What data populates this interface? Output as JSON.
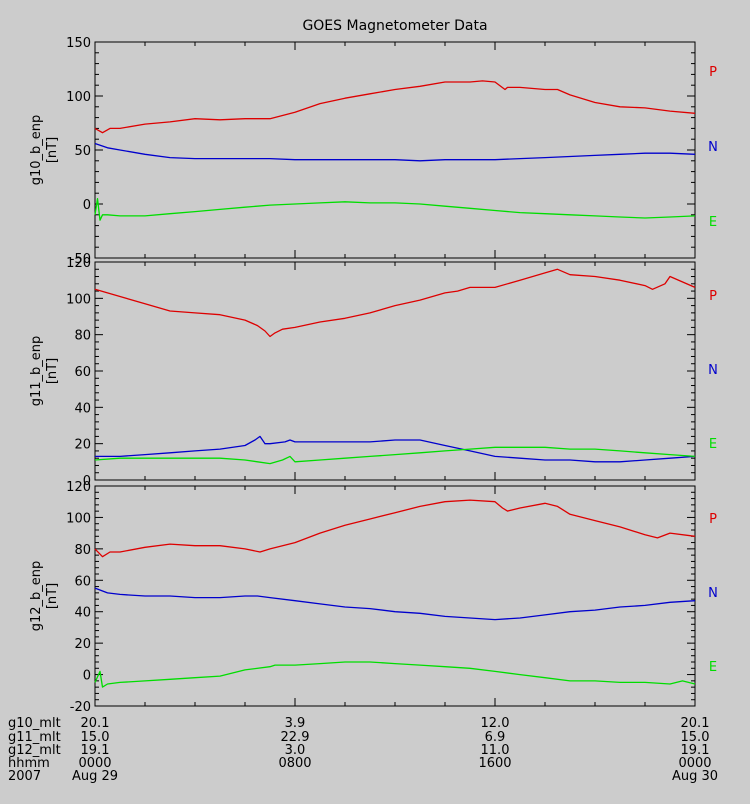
{
  "chart_data": {
    "type": "line",
    "title": "GOES Magnetometer Data",
    "time_axis": {
      "x_range_hours": [
        0,
        24
      ],
      "positions_hours": [
        0,
        8,
        16,
        24
      ],
      "rows": [
        {
          "label": "g10_mlt",
          "values": [
            "20.1",
            "3.9",
            "12.0",
            "20.1"
          ]
        },
        {
          "label": "g11_mlt",
          "values": [
            "15.0",
            "22.9",
            "6.9",
            "15.0"
          ]
        },
        {
          "label": "g12_mlt",
          "values": [
            "19.1",
            "3.0",
            "11.0",
            "19.1"
          ]
        },
        {
          "label": "hhmm",
          "values": [
            "0000",
            "0800",
            "1600",
            "0000"
          ]
        },
        {
          "label": "2007",
          "values": [
            "Aug 29",
            "",
            "",
            "Aug 30"
          ]
        }
      ]
    },
    "panels": [
      {
        "ylabel": "g10_b_enp",
        "unit": "[nT]",
        "ylim": [
          -50,
          150
        ],
        "yticks": [
          "-50",
          "0",
          "50",
          "100",
          "150"
        ],
        "series": [
          {
            "name": "P",
            "color": "#dd0000",
            "x": [
              0,
              0.3,
              0.6,
              1,
              2,
              3,
              4,
              5,
              6,
              7,
              8,
              9,
              10,
              11,
              12,
              13,
              14,
              15,
              15.5,
              16,
              16.4,
              16.5,
              17,
              18,
              18.5,
              19,
              20,
              21,
              22,
              23,
              24
            ],
            "y": [
              70,
              66,
              70,
              70,
              74,
              76,
              79,
              78,
              79,
              79,
              85,
              93,
              98,
              102,
              106,
              109,
              113,
              113,
              114,
              113,
              106,
              108,
              108,
              106,
              106,
              101,
              94,
              90,
              89,
              86,
              84
            ]
          },
          {
            "name": "N",
            "color": "#0000cc",
            "x": [
              0,
              0.5,
              1,
              2,
              3,
              4,
              5,
              6,
              7,
              8,
              9,
              10,
              11,
              12,
              13,
              14,
              15,
              16,
              17,
              18,
              19,
              20,
              21,
              22,
              23,
              24
            ],
            "y": [
              56,
              52,
              50,
              46,
              43,
              42,
              42,
              42,
              42,
              41,
              41,
              41,
              41,
              41,
              40,
              41,
              41,
              41,
              42,
              43,
              44,
              45,
              46,
              47,
              47,
              46
            ]
          },
          {
            "name": "E",
            "color": "#00dd00",
            "x": [
              0,
              0.1,
              0.2,
              0.3,
              0.5,
              1,
              2,
              3,
              4,
              5,
              6,
              7,
              8,
              9,
              10,
              11,
              12,
              13,
              14,
              15,
              16,
              17,
              18,
              19,
              20,
              21,
              22,
              23,
              24
            ],
            "y": [
              -10,
              5,
              -15,
              -10,
              -10,
              -11,
              -11,
              -9,
              -7,
              -5,
              -3,
              -1,
              0,
              1,
              2,
              1,
              1,
              0,
              -2,
              -4,
              -6,
              -8,
              -9,
              -10,
              -11,
              -12,
              -13,
              -12,
              -11
            ]
          }
        ]
      },
      {
        "ylabel": "g11_b_enp",
        "unit": "[nT]",
        "ylim": [
          0,
          120
        ],
        "yticks": [
          "0",
          "20",
          "40",
          "60",
          "80",
          "100",
          "120"
        ],
        "series": [
          {
            "name": "P",
            "color": "#dd0000",
            "x": [
              0,
              0.5,
              1,
              2,
              3,
              4,
              5,
              6,
              6.5,
              6.8,
              7,
              7.2,
              7.5,
              8,
              9,
              10,
              11,
              12,
              13,
              14,
              14.5,
              15,
              16,
              17,
              18,
              18.5,
              19,
              20,
              21,
              22,
              22.3,
              22.8,
              23,
              24
            ],
            "y": [
              105,
              103,
              101,
              97,
              93,
              92,
              91,
              88,
              85,
              82,
              79,
              81,
              83,
              84,
              87,
              89,
              92,
              96,
              99,
              103,
              104,
              106,
              106,
              110,
              114,
              116,
              113,
              112,
              110,
              107,
              105,
              108,
              112,
              106
            ]
          },
          {
            "name": "N",
            "color": "#0000cc",
            "x": [
              0,
              1,
              2,
              3,
              4,
              5,
              6,
              6.4,
              6.6,
              6.8,
              7,
              7.6,
              7.8,
              8,
              9,
              10,
              11,
              12,
              13,
              14,
              15,
              16,
              17,
              18,
              19,
              20,
              21,
              22,
              23,
              24
            ],
            "y": [
              13,
              13,
              14,
              15,
              16,
              17,
              19,
              22,
              24,
              20,
              20,
              21,
              22,
              21,
              21,
              21,
              21,
              22,
              22,
              19,
              16,
              13,
              12,
              11,
              11,
              10,
              10,
              11,
              12,
              13
            ]
          },
          {
            "name": "E",
            "color": "#00dd00",
            "x": [
              0,
              1,
              2,
              3,
              4,
              5,
              6,
              6.5,
              7,
              7.5,
              7.8,
              8,
              9,
              10,
              11,
              12,
              13,
              14,
              15,
              16,
              17,
              18,
              19,
              20,
              21,
              22,
              23,
              24
            ],
            "y": [
              11,
              12,
              12,
              12,
              12,
              12,
              11,
              10,
              9,
              11,
              13,
              10,
              11,
              12,
              13,
              14,
              15,
              16,
              17,
              18,
              18,
              18,
              17,
              17,
              16,
              15,
              14,
              13
            ]
          }
        ]
      },
      {
        "ylabel": "g12_b_enp",
        "unit": "[nT]",
        "ylim": [
          -20,
          120
        ],
        "yticks": [
          "-20",
          "0",
          "20",
          "40",
          "60",
          "80",
          "100",
          "120"
        ],
        "series": [
          {
            "name": "P",
            "color": "#dd0000",
            "x": [
              0,
              0.3,
              0.6,
              1,
              2,
              3,
              4,
              5,
              6,
              6.6,
              7,
              8,
              9,
              10,
              11,
              12,
              13,
              14,
              15,
              16,
              16.3,
              16.5,
              17,
              18,
              18.5,
              19,
              20,
              21,
              22,
              22.5,
              23,
              24
            ],
            "y": [
              80,
              75,
              78,
              78,
              81,
              83,
              82,
              82,
              80,
              78,
              80,
              84,
              90,
              95,
              99,
              103,
              107,
              110,
              111,
              110,
              106,
              104,
              106,
              109,
              107,
              102,
              98,
              94,
              89,
              87,
              90,
              88
            ]
          },
          {
            "name": "N",
            "color": "#0000cc",
            "x": [
              0,
              0.5,
              1,
              2,
              3,
              4,
              5,
              6,
              6.5,
              7,
              8,
              9,
              10,
              11,
              12,
              13,
              14,
              15,
              16,
              17,
              18,
              19,
              20,
              21,
              22,
              23,
              24
            ],
            "y": [
              55,
              52,
              51,
              50,
              50,
              49,
              49,
              50,
              50,
              49,
              47,
              45,
              43,
              42,
              40,
              39,
              37,
              36,
              35,
              36,
              38,
              40,
              41,
              43,
              44,
              46,
              47
            ]
          },
          {
            "name": "E",
            "color": "#00dd00",
            "x": [
              0,
              0.2,
              0.3,
              0.5,
              1,
              2,
              3,
              4,
              5,
              6,
              7,
              7.2,
              8,
              9,
              10,
              11,
              12,
              13,
              14,
              15,
              16,
              17,
              18,
              19,
              20,
              21,
              22,
              23,
              23.5,
              24
            ],
            "y": [
              -5,
              2,
              -8,
              -6,
              -5,
              -4,
              -3,
              -2,
              -1,
              3,
              5,
              6,
              6,
              7,
              8,
              8,
              7,
              6,
              5,
              4,
              2,
              0,
              -2,
              -4,
              -4,
              -5,
              -5,
              -6,
              -4,
              -6
            ]
          }
        ]
      }
    ]
  }
}
